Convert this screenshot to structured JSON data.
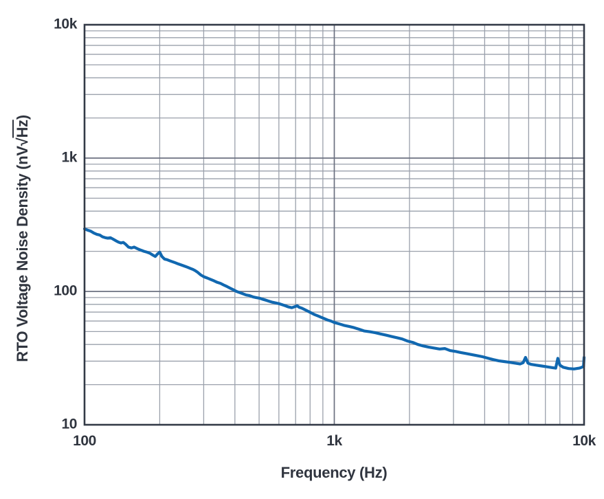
{
  "colors": {
    "background": "#ffffff",
    "curve_blue": "#1168B0",
    "grid_minor": "#9AA0AB",
    "grid_major": "#6B7080",
    "axis_border": "#333A47",
    "text": "#30353F"
  },
  "chart_data": {
    "type": "line",
    "title": "",
    "xlabel": "Frequency (Hz)",
    "ylabel": "RTO Voltage Noise Density (nV√Hz)",
    "ylabel_parts": {
      "prefix": "RTO Voltage Noise Density (nV√",
      "radicand": "Hz",
      "suffix": ")"
    },
    "x_scale": "log",
    "y_scale": "log",
    "xlim": [
      100,
      10000
    ],
    "ylim": [
      10,
      10000
    ],
    "grid": "log major + minor, all on",
    "legend_position": "none",
    "x_ticks": [
      {
        "value": 100,
        "label": "100"
      },
      {
        "value": 1000,
        "label": "1k"
      },
      {
        "value": 10000,
        "label": "10k"
      }
    ],
    "y_ticks": [
      {
        "value": 10000,
        "label": "10k"
      },
      {
        "value": 1000,
        "label": "1k"
      },
      {
        "value": 100,
        "label": "100"
      },
      {
        "value": 10,
        "label": "10"
      }
    ],
    "series": [
      {
        "name": "RTO voltage noise density",
        "color": "#1168B0",
        "points": [
          [
            100,
            295
          ],
          [
            103,
            288
          ],
          [
            106,
            283
          ],
          [
            109,
            274
          ],
          [
            112,
            268
          ],
          [
            115,
            265
          ],
          [
            118,
            257
          ],
          [
            121,
            253
          ],
          [
            124,
            251
          ],
          [
            127,
            253
          ],
          [
            130,
            247
          ],
          [
            134,
            239
          ],
          [
            137,
            234
          ],
          [
            140,
            231
          ],
          [
            143,
            233
          ],
          [
            146,
            226
          ],
          [
            150,
            215
          ],
          [
            154,
            212
          ],
          [
            158,
            215
          ],
          [
            163,
            209
          ],
          [
            168,
            204
          ],
          [
            173,
            200
          ],
          [
            178,
            197
          ],
          [
            183,
            193
          ],
          [
            188,
            187
          ],
          [
            192,
            183
          ],
          [
            196,
            191
          ],
          [
            200,
            197
          ],
          [
            204,
            183
          ],
          [
            209,
            175
          ],
          [
            214,
            173
          ],
          [
            219,
            170
          ],
          [
            225,
            167
          ],
          [
            231,
            164
          ],
          [
            237,
            161
          ],
          [
            244,
            158
          ],
          [
            251,
            155
          ],
          [
            258,
            152
          ],
          [
            265,
            149
          ],
          [
            272,
            146
          ],
          [
            276,
            144
          ],
          [
            284,
            139
          ],
          [
            292,
            133
          ],
          [
            300,
            129
          ],
          [
            310,
            126
          ],
          [
            320,
            123
          ],
          [
            330,
            120
          ],
          [
            340,
            117
          ],
          [
            350,
            115
          ],
          [
            360,
            112
          ],
          [
            371,
            109
          ],
          [
            382,
            106
          ],
          [
            394,
            103
          ],
          [
            406,
            100
          ],
          [
            418,
            98
          ],
          [
            431,
            96
          ],
          [
            444,
            94
          ],
          [
            458,
            93
          ],
          [
            472,
            91
          ],
          [
            486,
            90
          ],
          [
            501,
            89
          ],
          [
            516,
            87.5
          ],
          [
            532,
            86
          ],
          [
            548,
            84.5
          ],
          [
            565,
            83
          ],
          [
            582,
            82
          ],
          [
            600,
            81
          ],
          [
            618,
            79.5
          ],
          [
            637,
            78
          ],
          [
            656,
            76.5
          ],
          [
            676,
            75.5
          ],
          [
            697,
            77
          ],
          [
            710,
            78
          ],
          [
            724,
            76
          ],
          [
            740,
            75
          ],
          [
            762,
            73
          ],
          [
            785,
            71
          ],
          [
            809,
            69
          ],
          [
            834,
            67
          ],
          [
            859,
            65.5
          ],
          [
            885,
            64
          ],
          [
            912,
            62.5
          ],
          [
            940,
            61
          ],
          [
            968,
            60
          ],
          [
            1000,
            58.5
          ],
          [
            1050,
            57
          ],
          [
            1100,
            55.5
          ],
          [
            1150,
            54.5
          ],
          [
            1200,
            53.5
          ],
          [
            1260,
            52
          ],
          [
            1320,
            50.5
          ],
          [
            1390,
            49.8
          ],
          [
            1460,
            49
          ],
          [
            1530,
            48
          ],
          [
            1610,
            47
          ],
          [
            1690,
            46
          ],
          [
            1780,
            45
          ],
          [
            1870,
            44
          ],
          [
            1960,
            42.5
          ],
          [
            2060,
            41.5
          ],
          [
            2160,
            40
          ],
          [
            2270,
            39
          ],
          [
            2390,
            38.2
          ],
          [
            2510,
            37.6
          ],
          [
            2640,
            37
          ],
          [
            2770,
            37.3
          ],
          [
            2910,
            36
          ],
          [
            3060,
            35.5
          ],
          [
            3210,
            34.8
          ],
          [
            3380,
            34.2
          ],
          [
            3550,
            33.6
          ],
          [
            3730,
            33
          ],
          [
            3920,
            32.4
          ],
          [
            4120,
            31.6
          ],
          [
            4330,
            30.8
          ],
          [
            4550,
            30.2
          ],
          [
            4780,
            29.8
          ],
          [
            5020,
            29.4
          ],
          [
            5280,
            29
          ],
          [
            5550,
            28.6
          ],
          [
            5700,
            29.2
          ],
          [
            5830,
            32
          ],
          [
            5960,
            29
          ],
          [
            6130,
            28.4
          ],
          [
            6440,
            28
          ],
          [
            6770,
            27.6
          ],
          [
            7110,
            27.2
          ],
          [
            7470,
            26.8
          ],
          [
            7700,
            26.6
          ],
          [
            7850,
            31.5
          ],
          [
            8000,
            28
          ],
          [
            8250,
            27
          ],
          [
            8670,
            26.4
          ],
          [
            9110,
            26.2
          ],
          [
            9570,
            26.6
          ],
          [
            9800,
            27
          ],
          [
            9950,
            27.4
          ],
          [
            10000,
            32
          ]
        ]
      }
    ]
  }
}
